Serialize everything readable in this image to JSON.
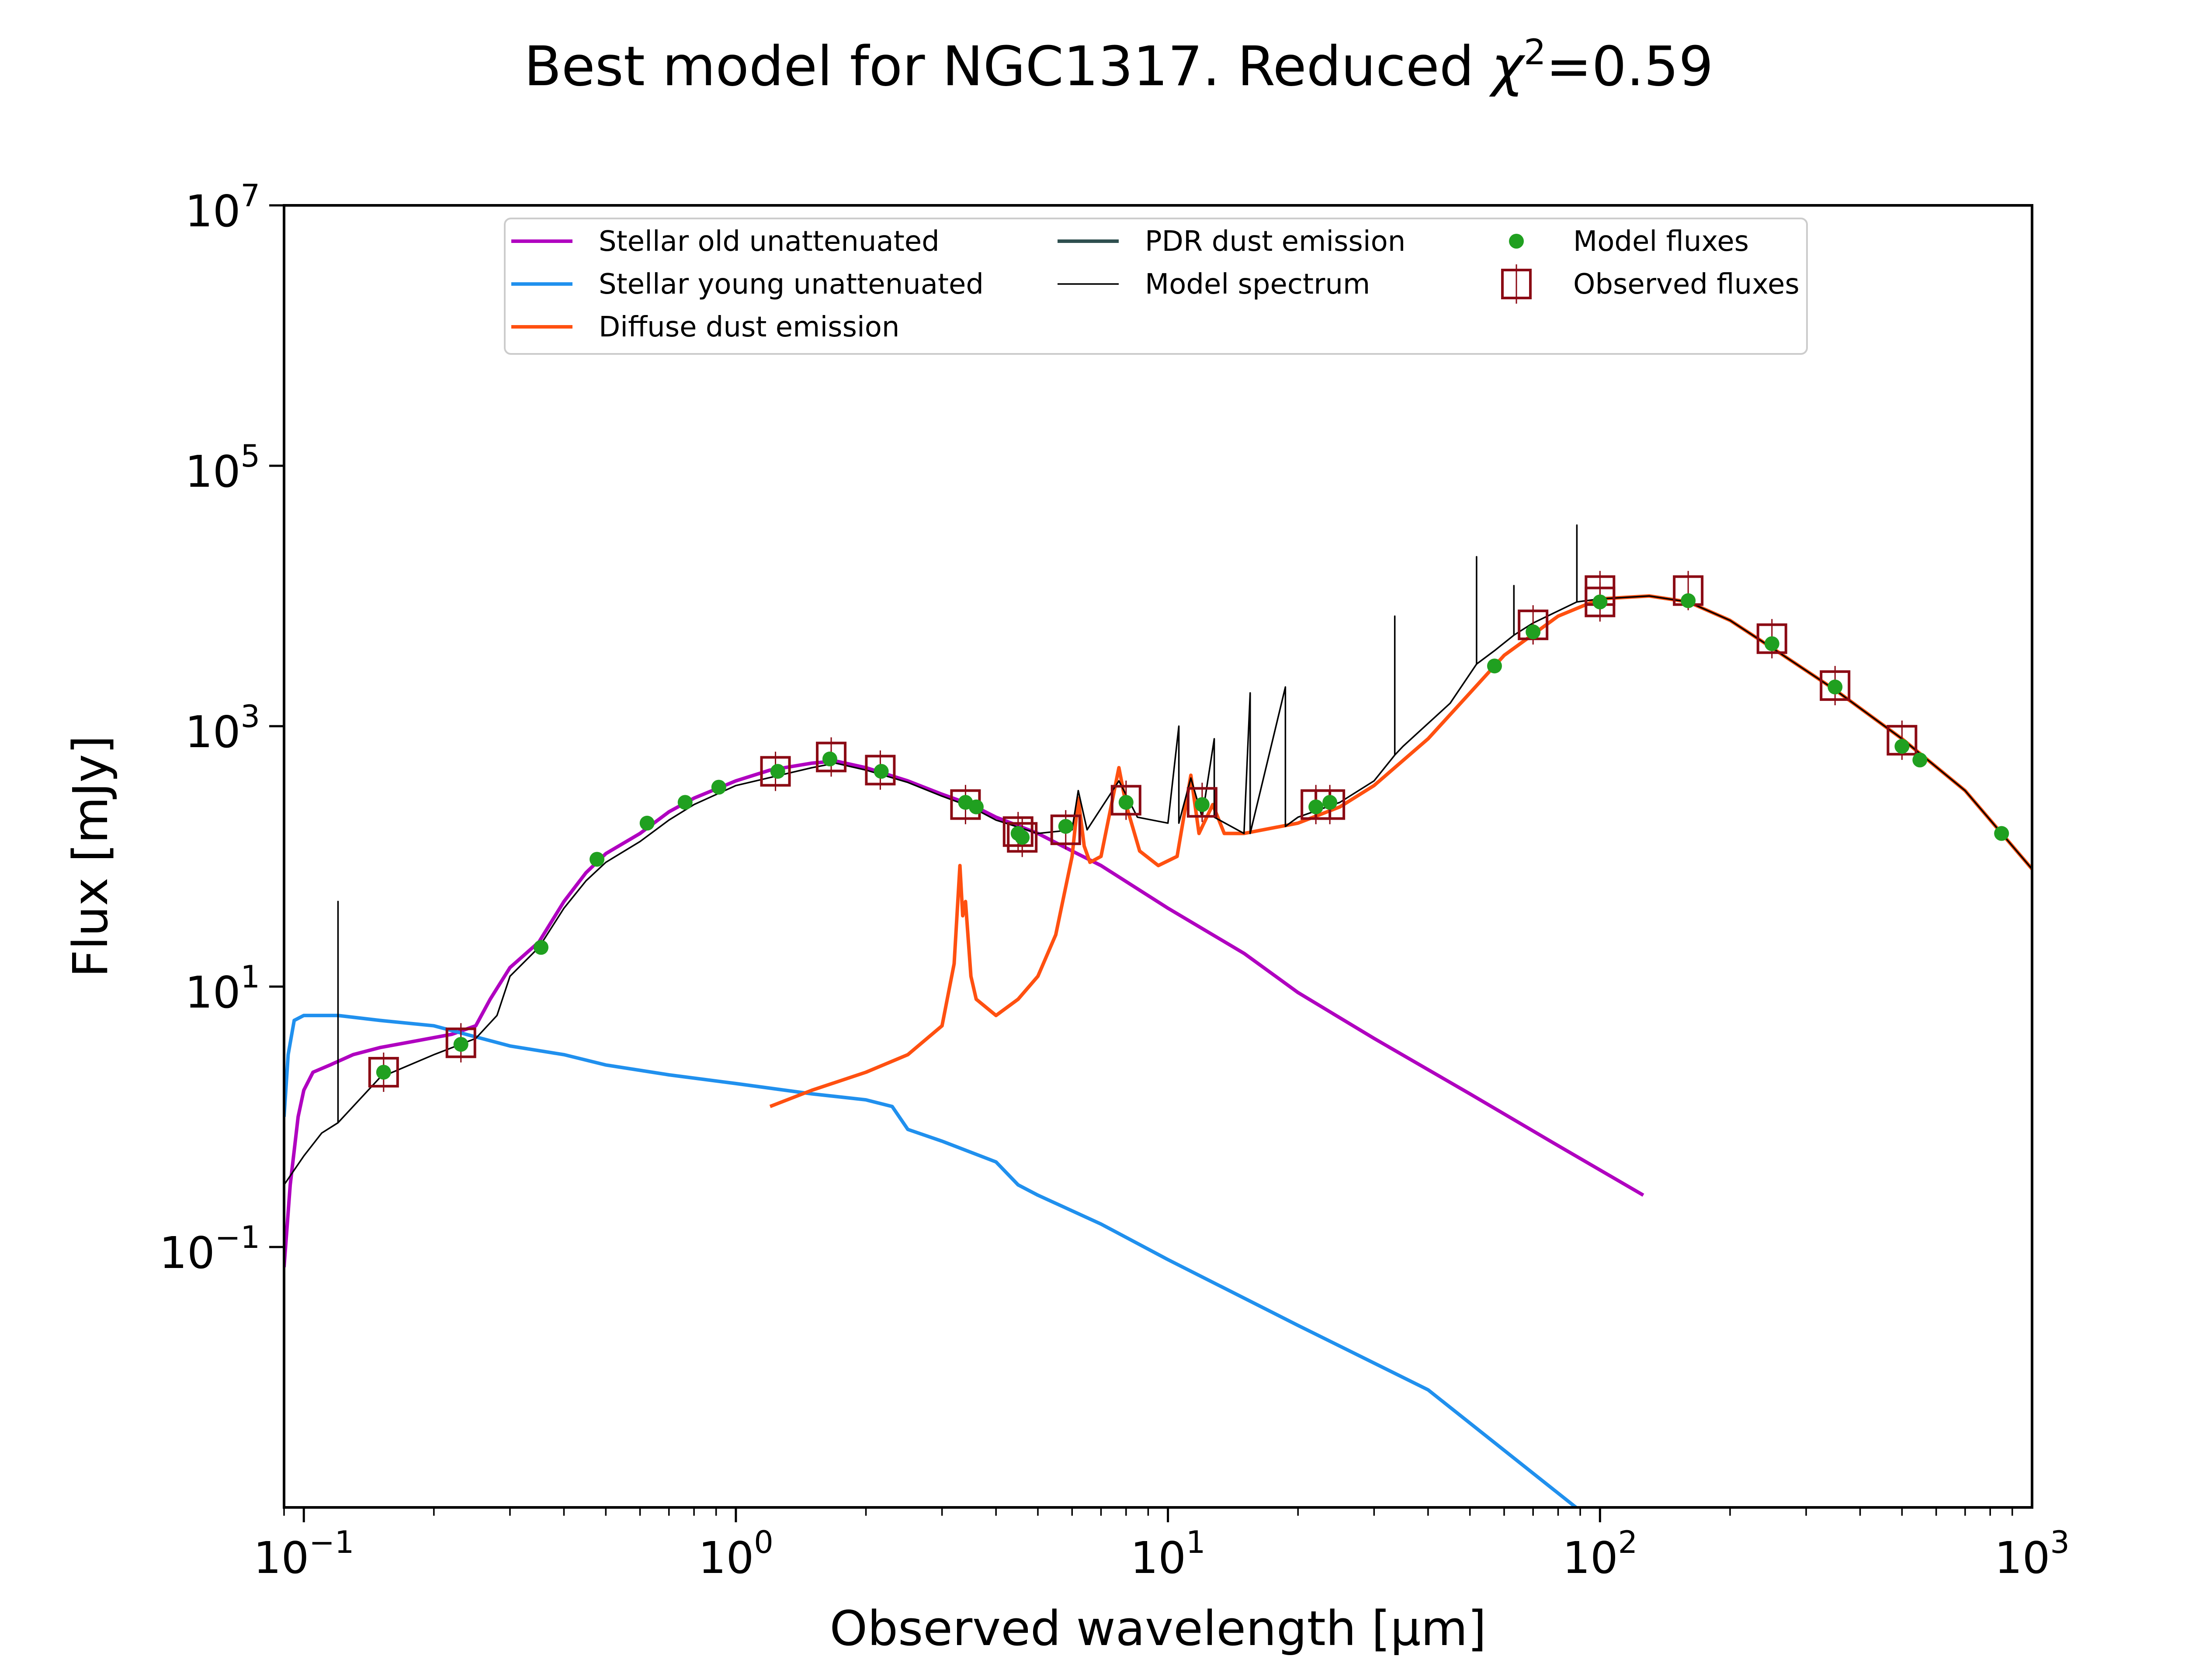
{
  "chart_data": {
    "type": "line",
    "title": "Best model for NGC1317. Reduced χ²=0.59",
    "title_parts": {
      "prefix": "Best model for NGC1317. Reduced ",
      "symbol": "χ",
      "superscript": "2",
      "suffix": "=0.59"
    },
    "xlabel": "Observed wavelength [μm]",
    "ylabel": "Flux [mJy]",
    "x_scale": "log",
    "y_scale": "log",
    "xlim": [
      0.09,
      1000
    ],
    "ylim": [
      0.001,
      10000000
    ],
    "x_ticks": [
      {
        "value": 0.1,
        "base": "10",
        "exp": "−1"
      },
      {
        "value": 1,
        "base": "10",
        "exp": "0"
      },
      {
        "value": 10,
        "base": "10",
        "exp": "1"
      },
      {
        "value": 100,
        "base": "10",
        "exp": "2"
      },
      {
        "value": 1000,
        "base": "10",
        "exp": "3"
      }
    ],
    "y_ticks": [
      {
        "value": 0.1,
        "base": "10",
        "exp": "−1"
      },
      {
        "value": 10,
        "base": "10",
        "exp": "1"
      },
      {
        "value": 1000,
        "base": "10",
        "exp": "3"
      },
      {
        "value": 100000,
        "base": "10",
        "exp": "5"
      },
      {
        "value": 10000000,
        "base": "10",
        "exp": "7"
      }
    ],
    "grid": false,
    "legend_position": "top-center",
    "series": [
      {
        "name": "Stellar old unattenuated",
        "kind": "line",
        "color": "#b000c0",
        "points": [
          [
            0.09,
            0.07
          ],
          [
            0.093,
            0.3
          ],
          [
            0.097,
            1.0
          ],
          [
            0.1,
            1.6
          ],
          [
            0.105,
            2.2
          ],
          [
            0.115,
            2.5
          ],
          [
            0.13,
            3.0
          ],
          [
            0.15,
            3.4
          ],
          [
            0.18,
            3.8
          ],
          [
            0.22,
            4.3
          ],
          [
            0.25,
            5.0
          ],
          [
            0.27,
            8.0
          ],
          [
            0.3,
            14
          ],
          [
            0.35,
            22
          ],
          [
            0.4,
            45
          ],
          [
            0.45,
            75
          ],
          [
            0.5,
            105
          ],
          [
            0.6,
            150
          ],
          [
            0.7,
            220
          ],
          [
            0.8,
            280
          ],
          [
            1.0,
            380
          ],
          [
            1.2,
            460
          ],
          [
            1.5,
            520
          ],
          [
            1.7,
            540
          ],
          [
            2.0,
            480
          ],
          [
            2.5,
            380
          ],
          [
            3.0,
            300
          ],
          [
            3.5,
            250
          ],
          [
            4.0,
            200
          ],
          [
            5.0,
            150
          ],
          [
            6.0,
            110
          ],
          [
            7.0,
            85
          ],
          [
            10.0,
            40
          ],
          [
            15.0,
            18
          ],
          [
            20.0,
            9
          ],
          [
            30.0,
            4
          ],
          [
            50.0,
            1.5
          ],
          [
            80.0,
            0.6
          ],
          [
            126,
            0.25
          ]
        ]
      },
      {
        "name": "Stellar young unattenuated",
        "kind": "line",
        "color": "#2090ee",
        "points": [
          [
            0.09,
            1.0
          ],
          [
            0.092,
            3.0
          ],
          [
            0.095,
            5.5
          ],
          [
            0.1,
            6.0
          ],
          [
            0.12,
            6.0
          ],
          [
            0.15,
            5.5
          ],
          [
            0.2,
            5.0
          ],
          [
            0.3,
            3.5
          ],
          [
            0.4,
            3.0
          ],
          [
            0.5,
            2.5
          ],
          [
            0.7,
            2.1
          ],
          [
            1.0,
            1.8
          ],
          [
            1.5,
            1.5
          ],
          [
            2.0,
            1.35
          ],
          [
            2.3,
            1.2
          ],
          [
            2.5,
            0.8
          ],
          [
            3.0,
            0.65
          ],
          [
            4.0,
            0.45
          ],
          [
            4.5,
            0.3
          ],
          [
            5.0,
            0.25
          ],
          [
            7.0,
            0.15
          ],
          [
            10.0,
            0.08
          ],
          [
            20.0,
            0.025
          ],
          [
            40.0,
            0.008
          ],
          [
            88,
            0.001
          ]
        ]
      },
      {
        "name": "Diffuse dust emission",
        "kind": "line",
        "color": "#ff5010",
        "points": [
          [
            1.2,
            1.2
          ],
          [
            1.5,
            1.6
          ],
          [
            2.0,
            2.2
          ],
          [
            2.5,
            3.0
          ],
          [
            3.0,
            5.0
          ],
          [
            3.2,
            15
          ],
          [
            3.3,
            85
          ],
          [
            3.35,
            35
          ],
          [
            3.4,
            45
          ],
          [
            3.5,
            12
          ],
          [
            3.6,
            8
          ],
          [
            4.0,
            6
          ],
          [
            4.5,
            8
          ],
          [
            5.0,
            12
          ],
          [
            5.5,
            25
          ],
          [
            6.0,
            100
          ],
          [
            6.2,
            280
          ],
          [
            6.4,
            120
          ],
          [
            6.6,
            90
          ],
          [
            7.0,
            100
          ],
          [
            7.7,
            480
          ],
          [
            8.0,
            250
          ],
          [
            8.6,
            110
          ],
          [
            9.5,
            85
          ],
          [
            10.5,
            100
          ],
          [
            11.3,
            420
          ],
          [
            11.8,
            150
          ],
          [
            12.7,
            250
          ],
          [
            13.5,
            150
          ],
          [
            15.0,
            150
          ],
          [
            20.0,
            180
          ],
          [
            25.0,
            240
          ],
          [
            30.0,
            350
          ],
          [
            40.0,
            800
          ],
          [
            50.0,
            1800
          ],
          [
            60.0,
            3500
          ],
          [
            80.0,
            7000
          ],
          [
            100.0,
            9500
          ],
          [
            130,
            10000
          ],
          [
            160,
            9000
          ],
          [
            200,
            6500
          ],
          [
            250,
            4000
          ],
          [
            350,
            1900
          ],
          [
            500,
            800
          ],
          [
            700,
            320
          ],
          [
            1000,
            80
          ]
        ]
      },
      {
        "name": "PDR dust emission",
        "kind": "line",
        "color": "#2f4f4f",
        "points": []
      },
      {
        "name": "Model spectrum",
        "kind": "line",
        "color": "#000000",
        "points": [
          [
            0.09,
            0.3
          ],
          [
            0.1,
            0.5
          ],
          [
            0.11,
            0.75
          ],
          [
            0.12,
            0.9
          ],
          [
            0.12,
            45
          ],
          [
            0.12,
            0.9
          ],
          [
            0.15,
            2.0
          ],
          [
            0.2,
            3.0
          ],
          [
            0.25,
            4.0
          ],
          [
            0.28,
            6.0
          ],
          [
            0.3,
            12
          ],
          [
            0.35,
            20
          ],
          [
            0.4,
            40
          ],
          [
            0.45,
            65
          ],
          [
            0.5,
            90
          ],
          [
            0.6,
            130
          ],
          [
            0.7,
            190
          ],
          [
            0.8,
            250
          ],
          [
            1.0,
            350
          ],
          [
            1.5,
            480
          ],
          [
            1.7,
            520
          ],
          [
            2.0,
            460
          ],
          [
            2.5,
            370
          ],
          [
            3.0,
            290
          ],
          [
            3.5,
            240
          ],
          [
            4.0,
            190
          ],
          [
            5.0,
            150
          ],
          [
            6.0,
            160
          ],
          [
            6.2,
            320
          ],
          [
            6.5,
            160
          ],
          [
            7.7,
            380
          ],
          [
            8.5,
            200
          ],
          [
            10.0,
            180
          ],
          [
            10.6,
            1000
          ],
          [
            10.6,
            180
          ],
          [
            11.3,
            400
          ],
          [
            12.0,
            200
          ],
          [
            12.8,
            800
          ],
          [
            12.8,
            200
          ],
          [
            15.0,
            150
          ],
          [
            15.5,
            1800
          ],
          [
            15.5,
            150
          ],
          [
            18.7,
            2000
          ],
          [
            18.7,
            170
          ],
          [
            20.0,
            200
          ],
          [
            25.0,
            260
          ],
          [
            30.0,
            380
          ],
          [
            33.5,
            600
          ],
          [
            33.5,
            7000
          ],
          [
            33.5,
            600
          ],
          [
            35.0,
            700
          ],
          [
            45.0,
            1500
          ],
          [
            51.8,
            3000
          ],
          [
            51.8,
            20000
          ],
          [
            51.8,
            3000
          ],
          [
            57.0,
            3800
          ],
          [
            63.2,
            5000
          ],
          [
            63.2,
            12000
          ],
          [
            63.2,
            5000
          ],
          [
            70.0,
            6200
          ],
          [
            88.4,
            9000
          ],
          [
            88.4,
            35000
          ],
          [
            88.4,
            9000
          ],
          [
            100.0,
            9500
          ],
          [
            130,
            10000
          ],
          [
            160,
            9000
          ],
          [
            200,
            6500
          ],
          [
            250,
            4000
          ],
          [
            350,
            1900
          ],
          [
            500,
            800
          ],
          [
            700,
            320
          ],
          [
            1000,
            80
          ]
        ]
      }
    ],
    "model_fluxes": {
      "name": "Model fluxes",
      "color": "#20a020",
      "points": [
        [
          0.153,
          2.2
        ],
        [
          0.231,
          3.6
        ],
        [
          0.354,
          20
        ],
        [
          0.477,
          95
        ],
        [
          0.623,
          180
        ],
        [
          0.763,
          260
        ],
        [
          0.913,
          340
        ],
        [
          1.25,
          450
        ],
        [
          1.65,
          560
        ],
        [
          2.17,
          450
        ],
        [
          3.4,
          260
        ],
        [
          3.6,
          240
        ],
        [
          4.5,
          150
        ],
        [
          4.6,
          140
        ],
        [
          5.8,
          170
        ],
        [
          8.0,
          260
        ],
        [
          12.0,
          250
        ],
        [
          22.0,
          240
        ],
        [
          23.7,
          260
        ],
        [
          57.0,
          2900
        ],
        [
          70.0,
          5300
        ],
        [
          100.0,
          9000
        ],
        [
          160.0,
          9200
        ],
        [
          250.0,
          4300
        ],
        [
          350.0,
          2000
        ],
        [
          500.0,
          700
        ],
        [
          550.0,
          550
        ],
        [
          850.0,
          150
        ]
      ]
    },
    "observed_fluxes": {
      "name": "Observed fluxes",
      "color": "#8b0a14",
      "points": [
        [
          0.153,
          2.2
        ],
        [
          0.231,
          3.7
        ],
        [
          1.235,
          450
        ],
        [
          1.662,
          580
        ],
        [
          2.159,
          460
        ],
        [
          3.4,
          250
        ],
        [
          4.5,
          155
        ],
        [
          4.6,
          140
        ],
        [
          5.8,
          160
        ],
        [
          8.0,
          270
        ],
        [
          12.0,
          260
        ],
        [
          22.0,
          250
        ],
        [
          23.7,
          250
        ],
        [
          70.0,
          6000
        ],
        [
          100.0,
          9000
        ],
        [
          100.0,
          11000
        ],
        [
          160.0,
          11000
        ],
        [
          250.0,
          4700
        ],
        [
          350.0,
          2050
        ],
        [
          500.0,
          780
        ]
      ]
    }
  }
}
